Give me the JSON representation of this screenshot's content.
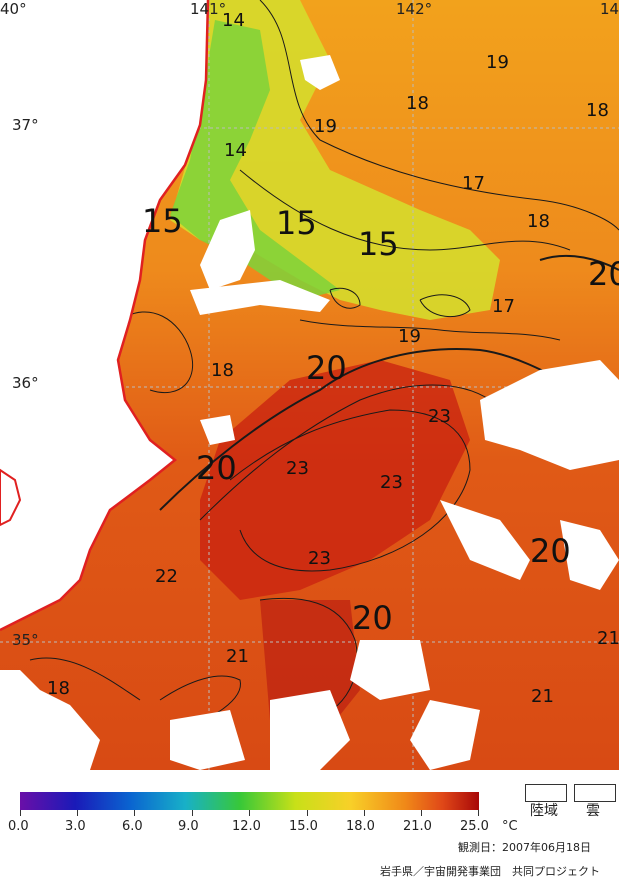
{
  "map": {
    "lon_labels": [
      "40°",
      "141°",
      "142°",
      "14"
    ],
    "lat_labels": [
      "37°",
      "36°",
      "35°"
    ],
    "contour_labels": [
      "14",
      "19",
      "18",
      "18",
      "19",
      "14",
      "17",
      "15",
      "15",
      "15",
      "18",
      "20",
      "17",
      "19",
      "20",
      "18",
      "23",
      "20",
      "23",
      "23",
      "22",
      "23",
      "20",
      "20",
      "21",
      "21",
      "18",
      "21"
    ]
  },
  "colorbar": {
    "ticks": [
      "0.0",
      "3.0",
      "6.0",
      "9.0",
      "12.0",
      "15.0",
      "18.0",
      "21.0",
      "25.0"
    ],
    "unit": "°C",
    "colors": [
      "#6a0fa8",
      "#1a1ab8",
      "#0a64d0",
      "#18b0c8",
      "#38c838",
      "#c8e018",
      "#f8d028",
      "#f08818",
      "#e04818",
      "#a80808"
    ]
  },
  "legend": {
    "land": "陸域",
    "cloud": "雲"
  },
  "footer": {
    "date": "観測日：2007年06月18日",
    "credit": "岩手県／宇宙開発事業団　共同プロジェクト"
  },
  "colors": {
    "coast": "#e02020",
    "land": "#ffffff",
    "grid": "#bcbcbc"
  }
}
